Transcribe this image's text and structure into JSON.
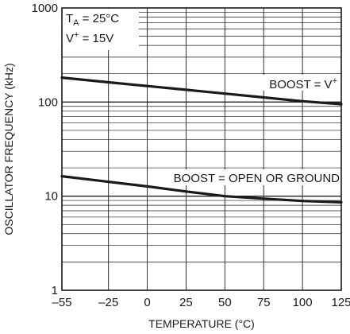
{
  "chart_data": {
    "type": "line",
    "title": "",
    "xlabel": "TEMPERATURE (°C)",
    "ylabel": "OSCILLATOR FREQUENCY (kHz)",
    "x_scale": "linear",
    "y_scale": "log",
    "xlim": [
      -55,
      125
    ],
    "ylim": [
      1,
      1000
    ],
    "x_ticks": [
      -55,
      -25,
      0,
      25,
      50,
      75,
      100,
      125
    ],
    "x_tick_labels": [
      "–55",
      "–25",
      "0",
      "25",
      "50",
      "75",
      "100",
      "125"
    ],
    "y_tick_labels": [
      {
        "value": 1,
        "label": "1"
      },
      {
        "value": 10,
        "label": "10"
      },
      {
        "value": 100,
        "label": "100"
      },
      {
        "value": 1000,
        "label": "1000"
      }
    ],
    "grid": true,
    "conditions": {
      "line1_main": "T",
      "line1_sub": "A",
      "line1_rest": " = 25°C",
      "line2_main": "V",
      "line2_sup": "+",
      "line2_rest": " = 15V"
    },
    "series": [
      {
        "name": "BOOST = V+",
        "label_main": "BOOST = V",
        "label_sup": "+",
        "x": [
          -55,
          -25,
          0,
          25,
          50,
          75,
          100,
          125
        ],
        "y": [
          182,
          162,
          148,
          135,
          123,
          112,
          102,
          95
        ]
      },
      {
        "name": "BOOST = OPEN OR GROUND",
        "label_main": "BOOST = OPEN OR GROUND",
        "x": [
          -55,
          -25,
          0,
          25,
          50,
          75,
          100,
          125
        ],
        "y": [
          16.3,
          14.2,
          12.7,
          11.2,
          10.0,
          9.4,
          8.9,
          8.6
        ]
      }
    ]
  }
}
